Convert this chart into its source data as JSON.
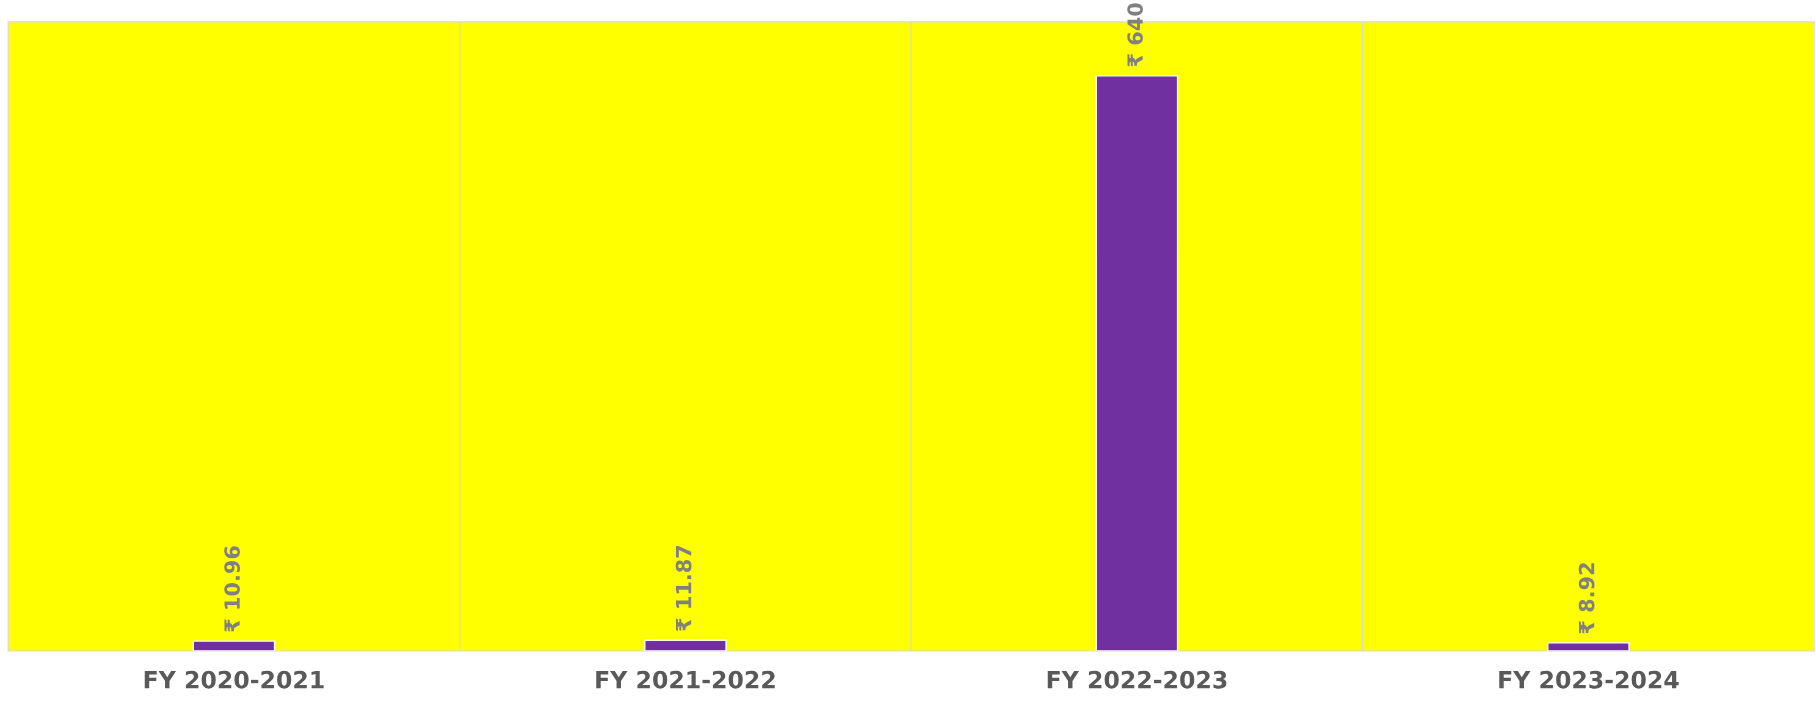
{
  "chart_data": {
    "type": "bar",
    "categories": [
      "FY 2020-2021",
      "FY 2021-2022",
      "FY 2022-2023",
      "FY 2023-2024"
    ],
    "values": [
      10.96,
      11.87,
      640,
      8.92
    ],
    "value_labels": [
      "₹ 10.96",
      "₹ 11.87",
      "₹ 640",
      "₹ 8.92"
    ],
    "color": "#7030a0",
    "ylim": [
      0,
      700
    ],
    "grid": "x",
    "tick_labels": "x"
  }
}
